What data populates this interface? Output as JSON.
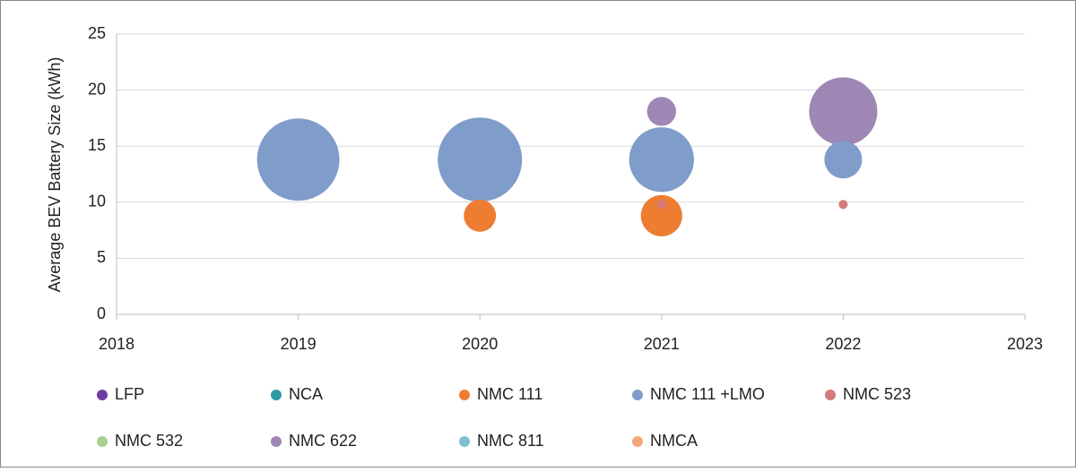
{
  "chart_data": {
    "type": "bubble",
    "ylabel": "Average BEV Battery Size (kWh)",
    "xlim": [
      2018,
      2023
    ],
    "xticks": [
      2018,
      2019,
      2020,
      2021,
      2022,
      2023
    ],
    "ylim": [
      0,
      25
    ],
    "yticks": [
      0,
      5,
      10,
      15,
      20,
      25
    ],
    "grid": true,
    "legend": "bottom",
    "series": [
      {
        "name": "LFP",
        "color": "#6f3da0",
        "x": [],
        "values": [],
        "sizes": []
      },
      {
        "name": "NCA",
        "color": "#2f9aa8",
        "x": [],
        "values": [],
        "sizes": []
      },
      {
        "name": "NMC 111",
        "color": "#ed7d31",
        "x": [
          2020,
          2021
        ],
        "values": [
          8.8,
          8.8
        ],
        "sizes": [
          32,
          53
        ]
      },
      {
        "name": "NMC 111 +LMO",
        "color": "#7f9ccb",
        "x": [
          2019,
          2020,
          2021,
          2022
        ],
        "values": [
          13.8,
          13.8,
          13.8,
          13.8
        ],
        "sizes": [
          210,
          220,
          130,
          44
        ]
      },
      {
        "name": "NMC 523",
        "color": "#d47a7a",
        "x": [
          2021,
          2022
        ],
        "values": [
          9.8,
          9.8
        ],
        "sizes": [
          2.5,
          2.5
        ]
      },
      {
        "name": "NMC 532",
        "color": "#a9d18e",
        "x": [],
        "values": [],
        "sizes": []
      },
      {
        "name": "NMC 622",
        "color": "#9e86b5",
        "x": [
          2021,
          2022
        ],
        "values": [
          18.1,
          18.1
        ],
        "sizes": [
          26,
          144
        ]
      },
      {
        "name": "NMC 811",
        "color": "#7fbfcf",
        "x": [],
        "values": [],
        "sizes": []
      },
      {
        "name": "NMCA",
        "color": "#f4a77a",
        "x": [],
        "values": [],
        "sizes": []
      }
    ]
  }
}
